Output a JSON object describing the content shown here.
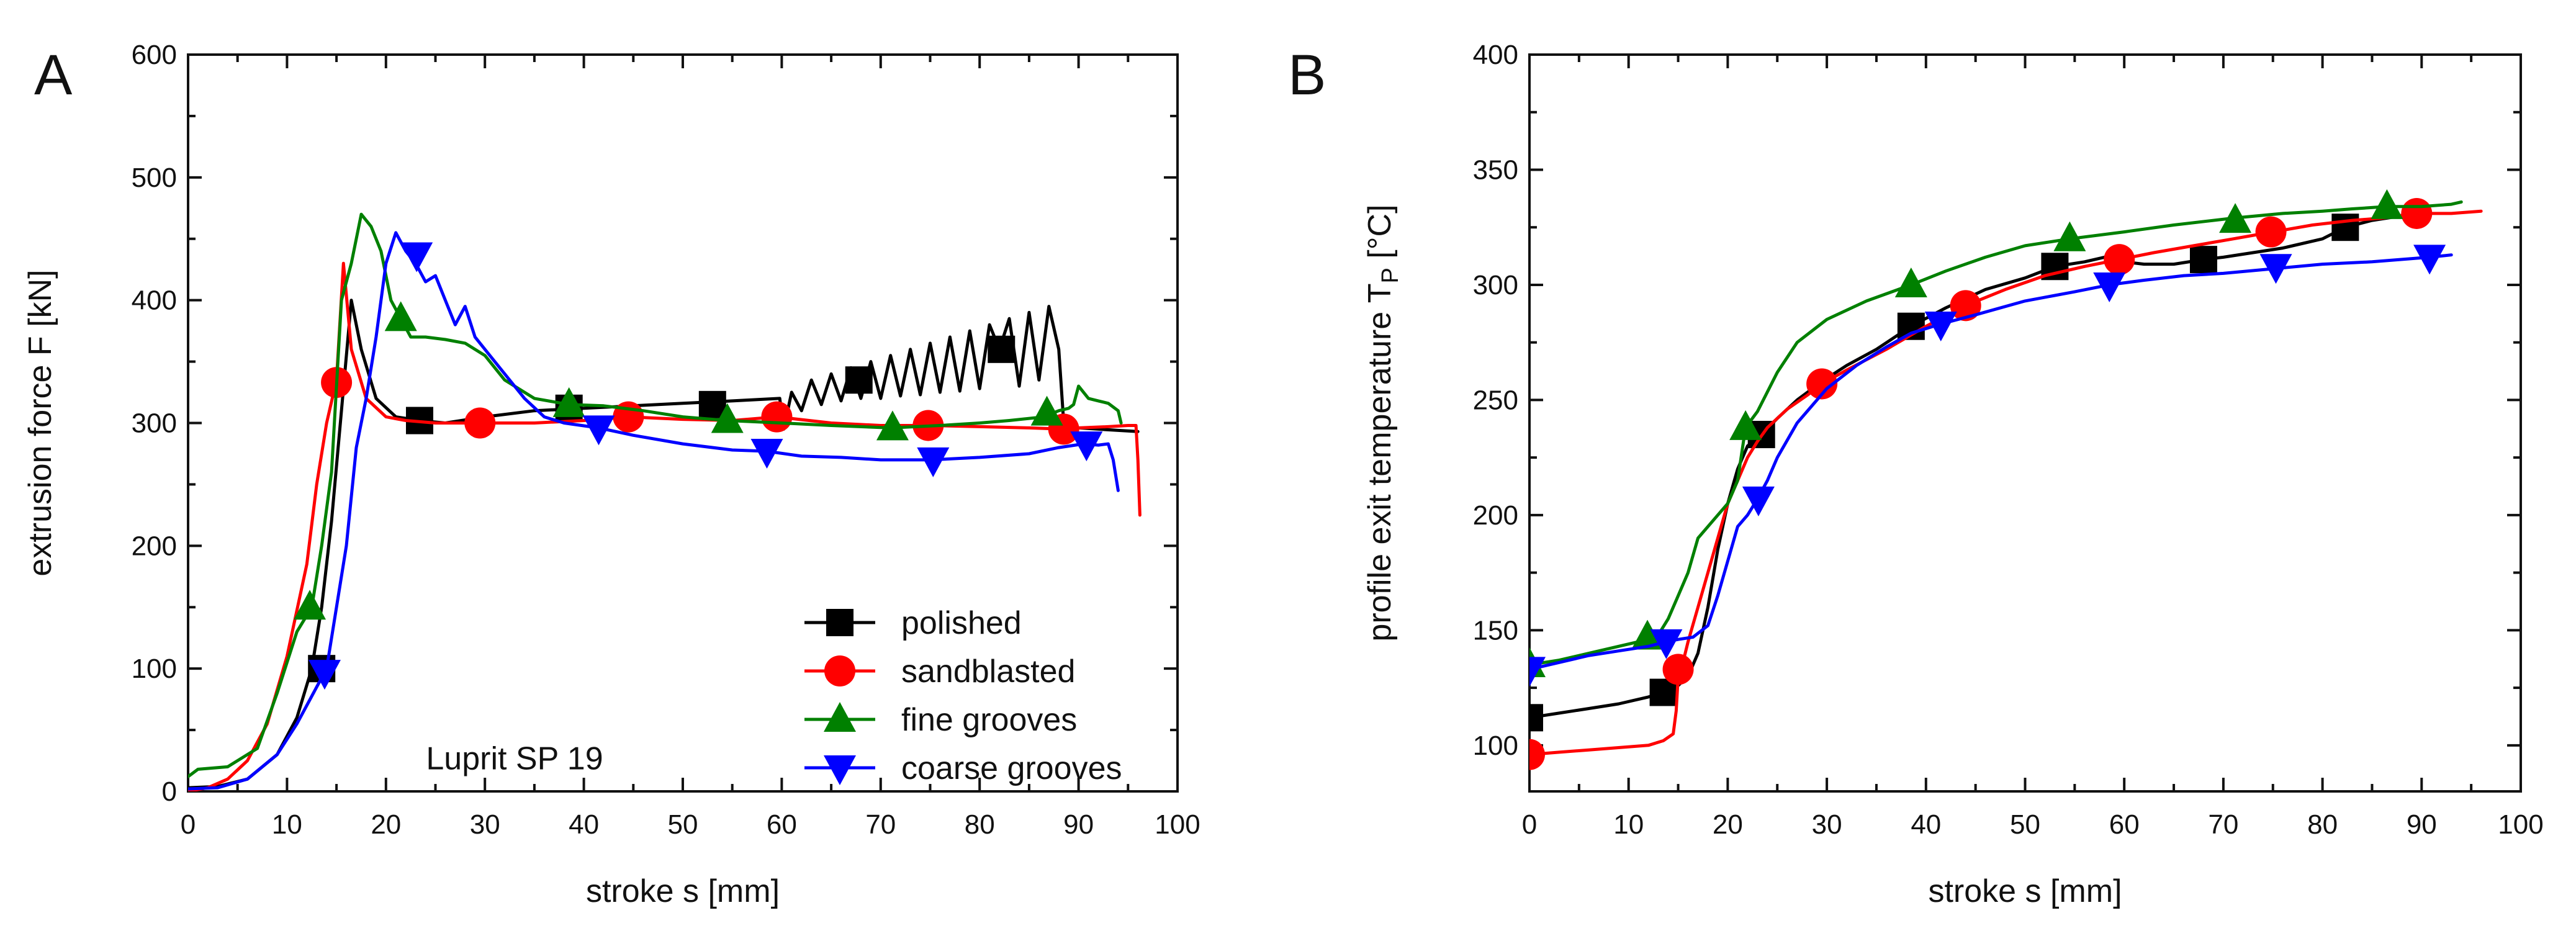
{
  "chart_data": [
    {
      "panel": "A",
      "type": "line",
      "xlabel": "stroke s [mm]",
      "ylabel": "extrusion force F [kN]",
      "xlim": [
        0,
        100
      ],
      "ylim": [
        0,
        600
      ],
      "xticks": [
        0,
        10,
        20,
        30,
        40,
        50,
        60,
        70,
        80,
        90,
        100
      ],
      "yticks": [
        0,
        100,
        200,
        300,
        400,
        500,
        600
      ],
      "annotation": "Luprit SP 19",
      "legend_position": "bottom-right",
      "series": [
        {
          "name": "polished",
          "color": "#000000",
          "marker": "square",
          "x": [
            0,
            3,
            6,
            9,
            11,
            12.5,
            13.5,
            14.5,
            15.5,
            16.5,
            17.5,
            19,
            21,
            23.4,
            26,
            30,
            35,
            40,
            45,
            50,
            55,
            59.8,
            60.2,
            61,
            62,
            63,
            64,
            65,
            66,
            67,
            68,
            69,
            70,
            71,
            72,
            73,
            74,
            75,
            76,
            77,
            78,
            79,
            80,
            81,
            82,
            83,
            84,
            85,
            86,
            87,
            88,
            88.5,
            89,
            90,
            92,
            94,
            96
          ],
          "y": [
            3,
            4,
            10,
            30,
            60,
            100,
            150,
            220,
            310,
            400,
            360,
            320,
            305,
            302,
            300,
            305,
            310,
            312,
            314,
            316,
            318,
            320,
            295,
            325,
            310,
            335,
            315,
            340,
            318,
            345,
            320,
            350,
            320,
            355,
            322,
            360,
            323,
            365,
            325,
            370,
            326,
            375,
            328,
            380,
            360,
            385,
            330,
            390,
            335,
            395,
            360,
            300,
            295,
            296,
            295,
            294,
            293
          ],
          "marker_x": [
            13.5,
            23.4,
            38.5,
            53,
            67.8,
            82.2
          ],
          "marker_y": [
            100,
            302,
            312,
            315,
            335,
            360
          ]
        },
        {
          "name": "sandblasted",
          "color": "#ff0000",
          "marker": "circle",
          "x": [
            0,
            2,
            4,
            6,
            8,
            10,
            12,
            13,
            14,
            15,
            15.7,
            16.5,
            18,
            20,
            22,
            25,
            29.5,
            35,
            40,
            44.5,
            50,
            55,
            59.5,
            65,
            70,
            75,
            80,
            85,
            88.5,
            90,
            93,
            95,
            95.8,
            96,
            96.2
          ],
          "y": [
            0,
            3,
            10,
            25,
            55,
            110,
            185,
            250,
            300,
            335,
            430,
            360,
            320,
            305,
            302,
            300,
            300,
            300,
            302,
            305,
            303,
            302,
            305,
            300,
            298,
            298,
            297,
            296,
            295,
            296,
            297,
            298,
            298,
            270,
            225
          ],
          "marker_x": [
            15,
            29.5,
            44.5,
            59.5,
            74.8,
            88.5
          ],
          "marker_y": [
            333,
            300,
            305,
            305,
            298,
            295
          ]
        },
        {
          "name": "fine grooves",
          "color": "#008000",
          "marker": "triangle-up",
          "x": [
            0,
            1,
            4,
            7,
            9,
            11,
            12.5,
            13.5,
            14.5,
            15.5,
            16.5,
            17.5,
            18.5,
            19.5,
            20.5,
            21.5,
            22.5,
            24,
            26,
            28,
            30,
            32,
            35,
            38.5,
            42,
            46,
            50,
            54.5,
            60,
            65,
            71,
            76,
            80,
            83,
            86.5,
            88,
            89,
            89.5,
            90,
            91,
            92,
            93,
            94,
            94.3
          ],
          "y": [
            12,
            18,
            20,
            35,
            80,
            130,
            150,
            200,
            260,
            400,
            430,
            470,
            460,
            440,
            400,
            385,
            370,
            370,
            368,
            365,
            355,
            335,
            320,
            315,
            314,
            310,
            305,
            302,
            300,
            298,
            296,
            298,
            300,
            302,
            305,
            310,
            312,
            315,
            330,
            320,
            318,
            316,
            310,
            300
          ],
          "marker_x": [
            12.3,
            21.5,
            38.5,
            54.5,
            71.2,
            86.8
          ],
          "marker_y": [
            150,
            385,
            315,
            302,
            296,
            308
          ]
        },
        {
          "name": "coarse grooves",
          "color": "#0000ff",
          "marker": "triangle-down",
          "x": [
            0,
            3,
            6,
            9,
            11,
            13,
            14,
            15,
            16,
            17,
            18,
            19,
            20,
            21,
            22,
            23,
            24,
            25,
            26,
            27,
            28,
            29,
            30,
            32,
            34,
            36,
            38,
            41.5,
            45,
            50,
            55,
            58.5,
            62,
            66,
            70,
            75,
            80,
            85,
            88,
            90.5,
            92,
            93,
            93.5,
            94
          ],
          "y": [
            2,
            3,
            10,
            30,
            55,
            85,
            100,
            150,
            200,
            280,
            320,
            370,
            430,
            455,
            440,
            430,
            415,
            420,
            400,
            380,
            395,
            370,
            360,
            340,
            320,
            305,
            300,
            296,
            290,
            283,
            278,
            277,
            273,
            272,
            270,
            270,
            272,
            275,
            280,
            283,
            282,
            283,
            270,
            245
          ],
          "marker_x": [
            13.8,
            23.1,
            41.5,
            58.5,
            75.3,
            90.8
          ],
          "marker_y": [
            97,
            437,
            296,
            277,
            270,
            283
          ]
        }
      ]
    },
    {
      "panel": "B",
      "type": "line",
      "xlabel": "stroke s [mm]",
      "ylabel_main": "profile exit temperature T",
      "ylabel_sub": "P",
      "ylabel_unit": " [°C]",
      "xlim": [
        0,
        100
      ],
      "ylim": [
        80,
        400
      ],
      "xticks": [
        0,
        10,
        20,
        30,
        40,
        50,
        60,
        70,
        80,
        90,
        100
      ],
      "yticks": [
        100,
        150,
        200,
        250,
        300,
        350,
        400
      ],
      "series": [
        {
          "name": "polished",
          "color": "#000000",
          "marker": "square",
          "x": [
            0,
            3,
            6,
            9,
            12,
            13.5,
            15,
            16,
            17,
            18,
            19,
            20,
            21,
            22,
            23.4,
            25,
            27,
            29.5,
            32,
            35,
            38.5,
            42,
            46,
            50,
            53,
            56,
            58,
            60,
            62,
            65,
            68,
            70,
            73,
            76,
            80,
            82.3,
            85,
            88,
            90
          ],
          "y": [
            112,
            114,
            116,
            118,
            121,
            123,
            126,
            130,
            140,
            160,
            185,
            205,
            220,
            230,
            235,
            242,
            250,
            258,
            265,
            272,
            282,
            290,
            298,
            303,
            308,
            310,
            312,
            310,
            309,
            309,
            311,
            312,
            314,
            316,
            320,
            325,
            328,
            330,
            331
          ],
          "marker_x": [
            0,
            13.5,
            23.4,
            38.5,
            53,
            68,
            82.3
          ],
          "marker_y": [
            112,
            123,
            235,
            282,
            308,
            311,
            325
          ]
        },
        {
          "name": "sandblasted",
          "color": "#ff0000",
          "marker": "circle",
          "x": [
            0,
            3,
            6,
            9,
            12,
            13.5,
            14.5,
            14.8,
            15,
            15.3,
            15.6,
            16,
            17,
            18,
            19,
            20,
            21,
            22,
            23,
            24,
            26,
            28,
            29.5,
            32,
            36,
            40,
            44,
            48,
            52,
            56,
            59.5,
            63,
            67,
            71,
            75,
            79,
            83,
            86,
            89.5,
            93,
            96
          ],
          "y": [
            96,
            97,
            98,
            99,
            100,
            102,
            105,
            115,
            130,
            133,
            138,
            145,
            160,
            175,
            190,
            205,
            215,
            225,
            232,
            238,
            246,
            252,
            257,
            263,
            272,
            282,
            291,
            298,
            304,
            308,
            311,
            314,
            317,
            320,
            323,
            326,
            328,
            329,
            331,
            331,
            332
          ],
          "marker_x": [
            0,
            15,
            29.5,
            44,
            59.5,
            74.8,
            89.5
          ],
          "marker_y": [
            96,
            133,
            257,
            291,
            311,
            323,
            331
          ]
        },
        {
          "name": "fine grooves",
          "color": "#008000",
          "marker": "triangle-up",
          "x": [
            0,
            3,
            6,
            9,
            12,
            13,
            14,
            15,
            16,
            17,
            18,
            19,
            20,
            21,
            21.8,
            23,
            25,
            27,
            30,
            34,
            38.5,
            42,
            46,
            50,
            54.5,
            60,
            65,
            71,
            76,
            80,
            83,
            86.5,
            90,
            93,
            94
          ],
          "y": [
            135,
            137,
            140,
            143,
            146,
            148,
            155,
            165,
            175,
            190,
            195,
            200,
            205,
            215,
            238,
            245,
            262,
            275,
            285,
            293,
            300,
            306,
            312,
            317,
            320,
            323,
            326,
            329,
            331,
            332,
            333,
            334,
            334,
            335,
            336
          ],
          "marker_x": [
            0,
            11.9,
            21.8,
            38.5,
            54.5,
            71.2,
            86.5
          ],
          "marker_y": [
            135,
            147,
            238,
            300,
            320,
            328,
            334
          ]
        },
        {
          "name": "coarse grooves",
          "color": "#0000ff",
          "marker": "triangle-down",
          "x": [
            0,
            3,
            6,
            9,
            12,
            13.8,
            15,
            16.5,
            18,
            19,
            20,
            21,
            22,
            23,
            24,
            25,
            27,
            30,
            33,
            36,
            38.5,
            41.5,
            45,
            50,
            55,
            58.5,
            62,
            66,
            70,
            75,
            80,
            85,
            90.8,
            93
          ],
          "y": [
            133,
            136,
            139,
            141,
            143,
            145,
            146,
            147,
            152,
            165,
            180,
            195,
            200,
            207,
            215,
            225,
            240,
            255,
            265,
            273,
            279,
            283,
            287,
            293,
            297,
            300,
            302,
            304,
            305,
            307,
            309,
            310,
            312,
            313
          ],
          "marker_x": [
            0,
            13.8,
            23.1,
            41.5,
            58.5,
            75.3,
            90.8
          ],
          "marker_y": [
            133,
            145,
            207,
            283,
            300,
            308,
            312
          ]
        }
      ]
    }
  ]
}
